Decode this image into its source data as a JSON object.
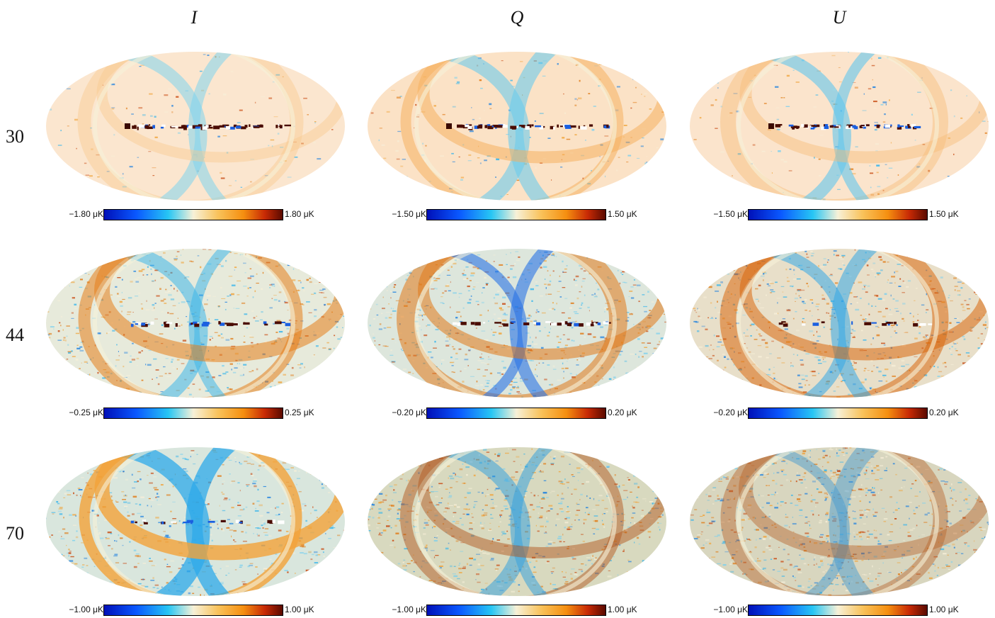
{
  "columns": [
    "I",
    "Q",
    "U"
  ],
  "rows": [
    {
      "label": "30",
      "maps": [
        {
          "name": "I",
          "min": "−1.80 μK",
          "max": "1.80 μK",
          "style": "quiet-I"
        },
        {
          "name": "Q",
          "min": "−1.50 μK",
          "max": "1.50 μK",
          "style": "quiet-Q"
        },
        {
          "name": "U",
          "min": "−1.50 μK",
          "max": "1.50 μK",
          "style": "quiet-U"
        }
      ]
    },
    {
      "label": "44",
      "maps": [
        {
          "name": "I",
          "min": "−0.25 μK",
          "max": "0.25 μK",
          "style": "noisy-I"
        },
        {
          "name": "Q",
          "min": "−0.20 μK",
          "max": "0.20 μK",
          "style": "noisy-Q"
        },
        {
          "name": "U",
          "min": "−0.20 μK",
          "max": "0.20 μK",
          "style": "noisy-U"
        }
      ]
    },
    {
      "label": "70",
      "maps": [
        {
          "name": "I",
          "min": "−1.00 μK",
          "max": "1.00 μK",
          "style": "strong-I"
        },
        {
          "name": "Q",
          "min": "−1.00 μK",
          "max": "1.00 μK",
          "style": "strong-Q"
        },
        {
          "name": "U",
          "min": "−1.00 μK",
          "max": "1.00 μK",
          "style": "strong-U"
        }
      ]
    }
  ],
  "colors": {
    "cold_deep": "#0010b8",
    "cold": "#27c6f4",
    "neutral": "#f7f1d8",
    "warm": "#f58f10",
    "hot_deep": "#5a0a00"
  }
}
